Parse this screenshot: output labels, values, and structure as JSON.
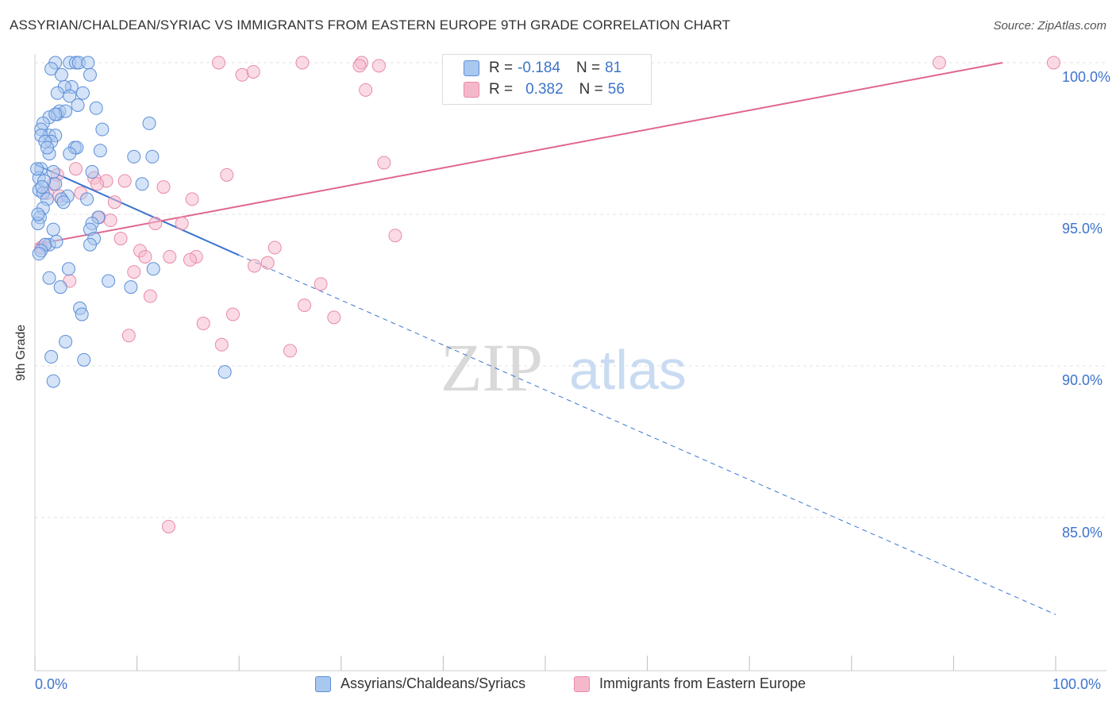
{
  "title": "ASSYRIAN/CHALDEAN/SYRIAC VS IMMIGRANTS FROM EASTERN EUROPE 9TH GRADE CORRELATION CHART",
  "source": "Source: ZipAtlas.com",
  "watermark": {
    "zip": "ZIP",
    "atlas": "atlas"
  },
  "colors": {
    "blue_fill": "#a9c8f0",
    "blue_stroke": "#5b8ed8",
    "blue_line": "#3a74cf",
    "pink_fill": "#f5b8cb",
    "pink_stroke": "#e88aa8",
    "pink_line": "#e0668e",
    "axis_text": "#3d73cc",
    "grid": "#e3e3e3"
  },
  "legend": {
    "rows": [
      {
        "r_label": "R =",
        "r_value": "-0.184",
        "n_label": "N =",
        "n_value": "81"
      },
      {
        "r_label": "R =",
        "r_value": "0.382",
        "n_label": "N =",
        "n_value": "56"
      }
    ]
  },
  "bottom_legend": {
    "series1": "Assyrians/Chaldeans/Syriacs",
    "series2": "Immigrants from Eastern Europe"
  },
  "axes": {
    "x_left_label": "0.0%",
    "x_right_label": "100.0%",
    "y_label": "9th Grade",
    "y_ticks": [
      "100.0%",
      "95.0%",
      "90.0%",
      "85.0%"
    ]
  },
  "chart_data": {
    "type": "scatter",
    "title": "ASSYRIAN/CHALDEAN/SYRIAC VS IMMIGRANTS FROM EASTERN EUROPE 9TH GRADE CORRELATION CHART",
    "xlabel": "",
    "ylabel": "9th Grade",
    "xlim": [
      0,
      100
    ],
    "ylim": [
      80.4,
      100.6
    ],
    "y_ticks": [
      85,
      90,
      95,
      100
    ],
    "grid": true,
    "legend_placement": "top-center",
    "series": [
      {
        "name": "Assyrians/Chaldeans/Syriacs",
        "r": -0.184,
        "n": 81,
        "trend": {
          "x0": 0,
          "y0": 96.65,
          "x1": 20,
          "y1": 93.65,
          "dashed_to_x": 100,
          "dashed_to_y": 81.8
        },
        "points": [
          [
            2.0,
            100.0
          ],
          [
            3.4,
            100.0
          ],
          [
            4.0,
            100.0
          ],
          [
            4.3,
            100.0
          ],
          [
            5.2,
            100.0
          ],
          [
            1.6,
            99.8
          ],
          [
            2.6,
            99.6
          ],
          [
            5.4,
            99.6
          ],
          [
            3.6,
            99.2
          ],
          [
            2.9,
            99.2
          ],
          [
            2.2,
            99.0
          ],
          [
            3.4,
            98.9
          ],
          [
            4.2,
            98.6
          ],
          [
            6.0,
            98.5
          ],
          [
            2.2,
            98.3
          ],
          [
            2.4,
            98.4
          ],
          [
            3.0,
            98.4
          ],
          [
            1.4,
            98.2
          ],
          [
            2.0,
            98.3
          ],
          [
            0.8,
            98.0
          ],
          [
            11.2,
            98.0
          ],
          [
            0.6,
            97.8
          ],
          [
            6.6,
            97.8
          ],
          [
            1.4,
            97.6
          ],
          [
            2.0,
            97.6
          ],
          [
            0.6,
            97.6
          ],
          [
            1.6,
            97.4
          ],
          [
            1.0,
            97.4
          ],
          [
            3.9,
            97.2
          ],
          [
            4.1,
            97.2
          ],
          [
            6.4,
            97.1
          ],
          [
            1.4,
            97.0
          ],
          [
            3.4,
            97.0
          ],
          [
            9.7,
            96.9
          ],
          [
            11.5,
            96.9
          ],
          [
            0.6,
            96.5
          ],
          [
            1.8,
            96.4
          ],
          [
            5.6,
            96.4
          ],
          [
            0.4,
            96.2
          ],
          [
            2.0,
            96.0
          ],
          [
            10.5,
            96.0
          ],
          [
            0.4,
            95.8
          ],
          [
            0.8,
            95.7
          ],
          [
            3.2,
            95.6
          ],
          [
            1.2,
            95.5
          ],
          [
            2.6,
            95.5
          ],
          [
            5.1,
            95.5
          ],
          [
            2.8,
            95.4
          ],
          [
            0.8,
            95.2
          ],
          [
            0.5,
            94.9
          ],
          [
            6.2,
            94.9
          ],
          [
            0.3,
            94.7
          ],
          [
            5.6,
            94.7
          ],
          [
            1.8,
            94.5
          ],
          [
            5.4,
            94.5
          ],
          [
            5.8,
            94.2
          ],
          [
            5.4,
            94.0
          ],
          [
            1.4,
            94.0
          ],
          [
            1.0,
            94.0
          ],
          [
            0.6,
            93.8
          ],
          [
            0.4,
            93.7
          ],
          [
            11.6,
            93.2
          ],
          [
            1.4,
            92.9
          ],
          [
            7.2,
            92.8
          ],
          [
            9.4,
            92.6
          ],
          [
            4.4,
            91.9
          ],
          [
            4.6,
            91.7
          ],
          [
            3.0,
            90.8
          ],
          [
            1.6,
            90.3
          ],
          [
            4.8,
            90.2
          ],
          [
            18.6,
            89.8
          ],
          [
            1.8,
            89.5
          ],
          [
            0.2,
            96.5
          ],
          [
            0.3,
            95.0
          ],
          [
            2.1,
            94.1
          ],
          [
            3.3,
            93.2
          ],
          [
            1.2,
            97.2
          ],
          [
            0.9,
            96.1
          ],
          [
            4.7,
            99.0
          ],
          [
            2.5,
            92.6
          ],
          [
            0.7,
            95.9
          ]
        ]
      },
      {
        "name": "Immigrants from Eastern Europe",
        "r": 0.382,
        "n": 56,
        "trend": {
          "x0": 0,
          "y0": 94.0,
          "x1": 94.8,
          "y1": 100.0
        },
        "points": [
          [
            18.0,
            100.0
          ],
          [
            26.2,
            100.0
          ],
          [
            32.0,
            100.0
          ],
          [
            31.8,
            99.9
          ],
          [
            33.7,
            99.9
          ],
          [
            40.6,
            100.0
          ],
          [
            44.5,
            100.0
          ],
          [
            45.0,
            100.0
          ],
          [
            88.6,
            100.0
          ],
          [
            99.8,
            100.0
          ],
          [
            20.3,
            99.6
          ],
          [
            21.4,
            99.7
          ],
          [
            32.4,
            99.1
          ],
          [
            34.2,
            96.7
          ],
          [
            18.8,
            96.3
          ],
          [
            4.0,
            96.5
          ],
          [
            2.2,
            96.3
          ],
          [
            5.8,
            96.2
          ],
          [
            7.0,
            96.1
          ],
          [
            8.8,
            96.1
          ],
          [
            1.8,
            96.0
          ],
          [
            6.1,
            96.0
          ],
          [
            12.6,
            95.9
          ],
          [
            1.2,
            95.7
          ],
          [
            2.4,
            95.6
          ],
          [
            4.5,
            95.7
          ],
          [
            15.4,
            95.5
          ],
          [
            7.8,
            95.4
          ],
          [
            6.3,
            94.9
          ],
          [
            7.4,
            94.8
          ],
          [
            11.8,
            94.7
          ],
          [
            14.4,
            94.7
          ],
          [
            35.3,
            94.3
          ],
          [
            8.4,
            94.2
          ],
          [
            1.0,
            94.0
          ],
          [
            0.6,
            93.9
          ],
          [
            10.3,
            93.8
          ],
          [
            23.5,
            93.9
          ],
          [
            10.8,
            93.6
          ],
          [
            13.2,
            93.6
          ],
          [
            15.8,
            93.6
          ],
          [
            15.2,
            93.5
          ],
          [
            22.8,
            93.4
          ],
          [
            21.5,
            93.3
          ],
          [
            9.7,
            93.1
          ],
          [
            3.4,
            92.8
          ],
          [
            28.0,
            92.7
          ],
          [
            11.3,
            92.3
          ],
          [
            26.4,
            92.0
          ],
          [
            19.4,
            91.7
          ],
          [
            29.3,
            91.6
          ],
          [
            16.5,
            91.4
          ],
          [
            9.2,
            91.0
          ],
          [
            18.3,
            90.7
          ],
          [
            25.0,
            90.5
          ],
          [
            13.1,
            84.7
          ]
        ]
      }
    ]
  }
}
